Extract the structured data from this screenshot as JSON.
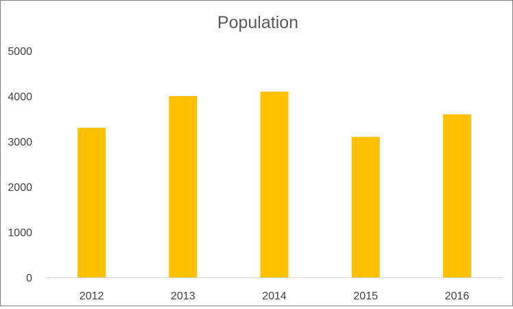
{
  "chart_data": {
    "type": "bar",
    "title": "Population",
    "xlabel": "",
    "ylabel": "",
    "categories": [
      "2012",
      "2013",
      "2014",
      "2015",
      "2016"
    ],
    "values": [
      3300,
      4000,
      4100,
      3100,
      3600
    ],
    "ylim": [
      0,
      5000
    ],
    "yticks": [
      "0",
      "1000",
      "2000",
      "3000",
      "4000",
      "5000"
    ],
    "grid": false,
    "legend": "none",
    "bar_color": "#FFC000",
    "axis_color": "#D9D9D9"
  }
}
